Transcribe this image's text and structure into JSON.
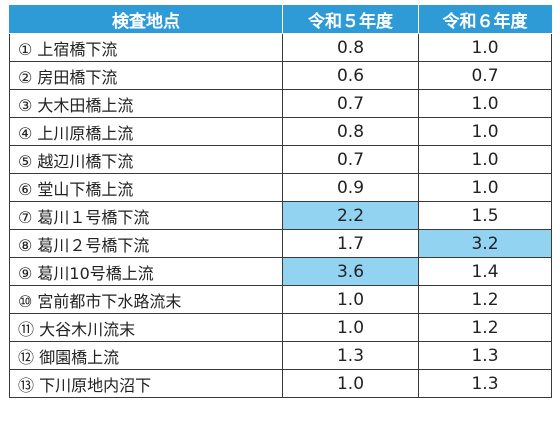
{
  "table": {
    "headers": [
      "検査地点",
      "令和５年度",
      "令和６年度"
    ],
    "highlight_color": "#93d3f2",
    "header_color": "#2e9ad6",
    "rows": [
      {
        "site": "① 上宿橋下流",
        "r5": "0.8",
        "r6": "1.0",
        "r5_highlight": false,
        "r6_highlight": false
      },
      {
        "site": "② 房田橋下流",
        "r5": "0.6",
        "r6": "0.7",
        "r5_highlight": false,
        "r6_highlight": false
      },
      {
        "site": "③ 大木田橋上流",
        "r5": "0.7",
        "r6": "1.0",
        "r5_highlight": false,
        "r6_highlight": false
      },
      {
        "site": "④ 上川原橋上流",
        "r5": "0.8",
        "r6": "1.0",
        "r5_highlight": false,
        "r6_highlight": false
      },
      {
        "site": "⑤ 越辺川橋下流",
        "r5": "0.7",
        "r6": "1.0",
        "r5_highlight": false,
        "r6_highlight": false
      },
      {
        "site": "⑥ 堂山下橋上流",
        "r5": "0.9",
        "r6": "1.0",
        "r5_highlight": false,
        "r6_highlight": false
      },
      {
        "site": "⑦ 葛川１号橋下流",
        "r5": "2.2",
        "r6": "1.5",
        "r5_highlight": true,
        "r6_highlight": false
      },
      {
        "site": "⑧ 葛川２号橋下流",
        "r5": "1.7",
        "r6": "3.2",
        "r5_highlight": false,
        "r6_highlight": true
      },
      {
        "site": "⑨ 葛川10号橋上流",
        "r5": "3.6",
        "r6": "1.4",
        "r5_highlight": true,
        "r6_highlight": false
      },
      {
        "site": "⑩ 宮前都市下水路流末",
        "r5": "1.0",
        "r6": "1.2",
        "r5_highlight": false,
        "r6_highlight": false
      },
      {
        "site": "⑪ 大谷木川流末",
        "r5": "1.0",
        "r6": "1.2",
        "r5_highlight": false,
        "r6_highlight": false
      },
      {
        "site": "⑫ 御園橋上流",
        "r5": "1.3",
        "r6": "1.3",
        "r5_highlight": false,
        "r6_highlight": false
      },
      {
        "site": "⑬ 下川原地内沼下",
        "r5": "1.0",
        "r6": "1.3",
        "r5_highlight": false,
        "r6_highlight": false
      }
    ]
  }
}
